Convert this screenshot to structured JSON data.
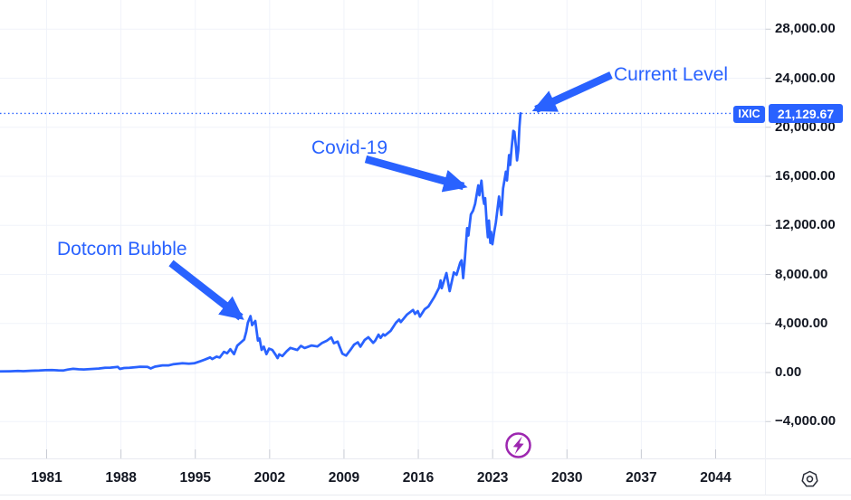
{
  "symbol_badge": "IXIC",
  "price_badge": "21,129.67",
  "annotations": [
    {
      "id": "dotcom",
      "label": "Dotcom Bubble"
    },
    {
      "id": "covid",
      "label": "Covid-19"
    },
    {
      "id": "current",
      "label": "Current Level"
    }
  ],
  "y_axis": {
    "ticks": [
      {
        "label": "28,000.00",
        "value": 28000
      },
      {
        "label": "24,000.00",
        "value": 24000
      },
      {
        "label": "20,000.00",
        "value": 20000
      },
      {
        "label": "16,000.00",
        "value": 16000
      },
      {
        "label": "12,000.00",
        "value": 12000
      },
      {
        "label": "8,000.00",
        "value": 8000
      },
      {
        "label": "4,000.00",
        "value": 4000
      },
      {
        "label": "0.00",
        "value": 0
      },
      {
        "label": "−4,000.00",
        "value": -4000
      }
    ]
  },
  "x_axis": {
    "ticks": [
      {
        "label": "1981",
        "year": 1981
      },
      {
        "label": "1988",
        "year": 1988
      },
      {
        "label": "1995",
        "year": 1995
      },
      {
        "label": "2002",
        "year": 2002
      },
      {
        "label": "2009",
        "year": 2009
      },
      {
        "label": "2016",
        "year": 2016
      },
      {
        "label": "2023",
        "year": 2023
      },
      {
        "label": "2030",
        "year": 2030
      },
      {
        "label": "2037",
        "year": 2037
      },
      {
        "label": "2044",
        "year": 2044
      }
    ]
  },
  "icons": {
    "flash": "lightning-bolt-in-circle",
    "settings": "heptagon-with-dot"
  },
  "colors": {
    "accent_blue": "#2962FF",
    "badge_blue": "#2962FF",
    "axis_text": "#131722",
    "gridline": "#f0f3fa",
    "tick": "#c9ccd4",
    "separator": "#e8eaf0",
    "flash_purple": "#9d27b0",
    "background": "#ffffff"
  },
  "chart_data": {
    "type": "line",
    "title": "",
    "xlabel": "",
    "ylabel": "",
    "legend": [],
    "grid": true,
    "xlim_years": [
      1976.5,
      2048
    ],
    "ylim": [
      -6500,
      30000
    ],
    "y_tick_values": [
      28000,
      24000,
      20000,
      16000,
      12000,
      8000,
      4000,
      0,
      -4000
    ],
    "x_tick_years": [
      1981,
      1988,
      1995,
      2002,
      2009,
      2016,
      2023,
      2030,
      2037,
      2044
    ],
    "current_level": 21129.67,
    "current_level_line": "dotted",
    "series": [
      {
        "name": "IXIC",
        "points": [
          [
            1976.6,
            90
          ],
          [
            1977.6,
            105
          ],
          [
            1978.3,
            125
          ],
          [
            1978.8,
            112
          ],
          [
            1979.6,
            145
          ],
          [
            1980.3,
            160
          ],
          [
            1980.9,
            195
          ],
          [
            1981.5,
            210
          ],
          [
            1982.1,
            175
          ],
          [
            1982.6,
            170
          ],
          [
            1983.0,
            240
          ],
          [
            1983.5,
            300
          ],
          [
            1984.0,
            268
          ],
          [
            1984.5,
            250
          ],
          [
            1985.2,
            285
          ],
          [
            1985.9,
            325
          ],
          [
            1986.5,
            380
          ],
          [
            1987.0,
            400
          ],
          [
            1987.7,
            455
          ],
          [
            1987.9,
            292
          ],
          [
            1988.3,
            370
          ],
          [
            1988.8,
            385
          ],
          [
            1989.5,
            445
          ],
          [
            1989.8,
            470
          ],
          [
            1990.5,
            458
          ],
          [
            1990.8,
            330
          ],
          [
            1991.2,
            480
          ],
          [
            1991.9,
            586
          ],
          [
            1992.5,
            580
          ],
          [
            1992.9,
            670
          ],
          [
            1993.8,
            750
          ],
          [
            1994.4,
            720
          ],
          [
            1994.9,
            752
          ],
          [
            1995.5,
            930
          ],
          [
            1995.9,
            1052
          ],
          [
            1996.4,
            1230
          ],
          [
            1996.6,
            1100
          ],
          [
            1997.0,
            1300
          ],
          [
            1997.3,
            1222
          ],
          [
            1997.7,
            1690
          ],
          [
            1998.0,
            1570
          ],
          [
            1998.3,
            1900
          ],
          [
            1998.65,
            1500
          ],
          [
            1998.95,
            2190
          ],
          [
            1999.3,
            2460
          ],
          [
            1999.6,
            2690
          ],
          [
            1999.8,
            3336
          ],
          [
            1999.95,
            4069
          ],
          [
            2000.2,
            4600
          ],
          [
            2000.35,
            3860
          ],
          [
            2000.65,
            4206
          ],
          [
            2000.9,
            2600
          ],
          [
            2001.05,
            2772
          ],
          [
            2001.25,
            1840
          ],
          [
            2001.45,
            2110
          ],
          [
            2001.7,
            1498
          ],
          [
            2001.95,
            1950
          ],
          [
            2002.25,
            1845
          ],
          [
            2002.55,
            1463
          ],
          [
            2002.75,
            1172
          ],
          [
            2002.9,
            1480
          ],
          [
            2003.2,
            1341
          ],
          [
            2003.6,
            1730
          ],
          [
            2003.95,
            2003
          ],
          [
            2004.6,
            1838
          ],
          [
            2004.95,
            2175
          ],
          [
            2005.3,
            1999
          ],
          [
            2005.95,
            2205
          ],
          [
            2006.5,
            2121
          ],
          [
            2006.95,
            2415
          ],
          [
            2007.4,
            2604
          ],
          [
            2007.8,
            2859
          ],
          [
            2008.05,
            2390
          ],
          [
            2008.4,
            2523
          ],
          [
            2008.85,
            1536
          ],
          [
            2009.2,
            1377
          ],
          [
            2009.6,
            1835
          ],
          [
            2009.95,
            2269
          ],
          [
            2010.3,
            2461
          ],
          [
            2010.55,
            2109
          ],
          [
            2010.95,
            2653
          ],
          [
            2011.3,
            2874
          ],
          [
            2011.75,
            2415
          ],
          [
            2011.95,
            2605
          ],
          [
            2012.25,
            3092
          ],
          [
            2012.45,
            2827
          ],
          [
            2012.7,
            3116
          ],
          [
            2012.85,
            3010
          ],
          [
            2013.4,
            3403
          ],
          [
            2013.9,
            4060
          ],
          [
            2014.2,
            4320
          ],
          [
            2014.35,
            4115
          ],
          [
            2014.95,
            4736
          ],
          [
            2015.5,
            5100
          ],
          [
            2015.7,
            4777
          ],
          [
            2015.95,
            5007
          ],
          [
            2016.15,
            4558
          ],
          [
            2016.6,
            5163
          ],
          [
            2016.95,
            5383
          ],
          [
            2017.5,
            6140
          ],
          [
            2017.95,
            6903
          ],
          [
            2018.1,
            7505
          ],
          [
            2018.2,
            6875
          ],
          [
            2018.65,
            8110
          ],
          [
            2018.95,
            6635
          ],
          [
            2019.35,
            8161
          ],
          [
            2019.6,
            7963
          ],
          [
            2019.95,
            8973
          ],
          [
            2020.08,
            9151
          ],
          [
            2020.22,
            7700
          ],
          [
            2020.35,
            8890
          ],
          [
            2020.6,
            11775
          ],
          [
            2020.72,
            11168
          ],
          [
            2020.95,
            12888
          ],
          [
            2021.15,
            13192
          ],
          [
            2021.35,
            13749
          ],
          [
            2021.65,
            15259
          ],
          [
            2021.75,
            14449
          ],
          [
            2021.95,
            15645
          ],
          [
            2022.1,
            14240
          ],
          [
            2022.2,
            13751
          ],
          [
            2022.3,
            14221
          ],
          [
            2022.45,
            12081
          ],
          [
            2022.55,
            11029
          ],
          [
            2022.65,
            12391
          ],
          [
            2022.78,
            10576
          ],
          [
            2022.85,
            11468
          ],
          [
            2022.98,
            10466
          ],
          [
            2023.15,
            11455
          ],
          [
            2023.3,
            12222
          ],
          [
            2023.6,
            14346
          ],
          [
            2023.82,
            12851
          ],
          [
            2023.98,
            15011
          ],
          [
            2024.25,
            16379
          ],
          [
            2024.35,
            15658
          ],
          [
            2024.55,
            17733
          ],
          [
            2024.65,
            16920
          ],
          [
            2024.78,
            18189
          ],
          [
            2024.95,
            19700
          ],
          [
            2025.05,
            19627
          ],
          [
            2025.2,
            18350
          ],
          [
            2025.3,
            17299
          ],
          [
            2025.42,
            18114
          ],
          [
            2025.52,
            19960
          ],
          [
            2025.62,
            21129.67
          ]
        ]
      }
    ],
    "annotated_events": [
      {
        "label": "Dotcom Bubble",
        "year": 2000.2,
        "value": 4600
      },
      {
        "label": "Covid-19",
        "year": 2020.2,
        "value": 7700
      },
      {
        "label": "Current Level",
        "year": 2025.62,
        "value": 21129.67
      }
    ]
  }
}
